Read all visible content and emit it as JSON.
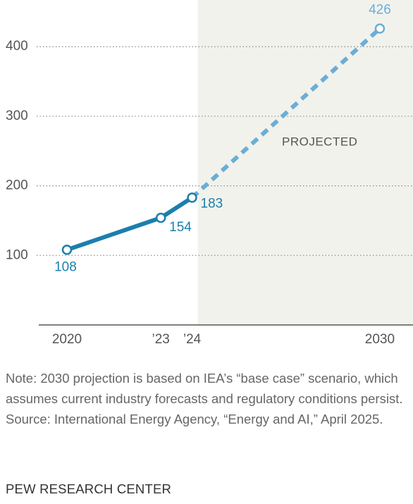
{
  "chart_data": {
    "type": "line",
    "x": [
      2020,
      2023,
      2024,
      2030
    ],
    "series": [
      {
        "color": "#1b7fad",
        "values": [
          108,
          154,
          183,
          null
        ],
        "dashed": false
      },
      {
        "color": "#6aaed8",
        "values": [
          null,
          null,
          183,
          426
        ],
        "dashed": true
      }
    ],
    "ylim": [
      0,
      460
    ],
    "yticks": [
      100,
      200,
      300,
      400
    ],
    "xlim": [
      2019.1,
      2031.06
    ],
    "xticks": [
      2020,
      {
        "value": 2023,
        "label": "’23"
      },
      {
        "value": 2024,
        "label": "’24"
      },
      2030
    ],
    "grid": true,
    "annotation": "PROJECTED",
    "note": "Note: 2030 projection is based on IEA’s “base case” scenario, which assumes current industry forecasts and regulatory conditions persist.",
    "source": "Source: International Energy Agency, “Energy and AI,” April 2025.",
    "footer": "PEW RESEARCH CENTER"
  }
}
